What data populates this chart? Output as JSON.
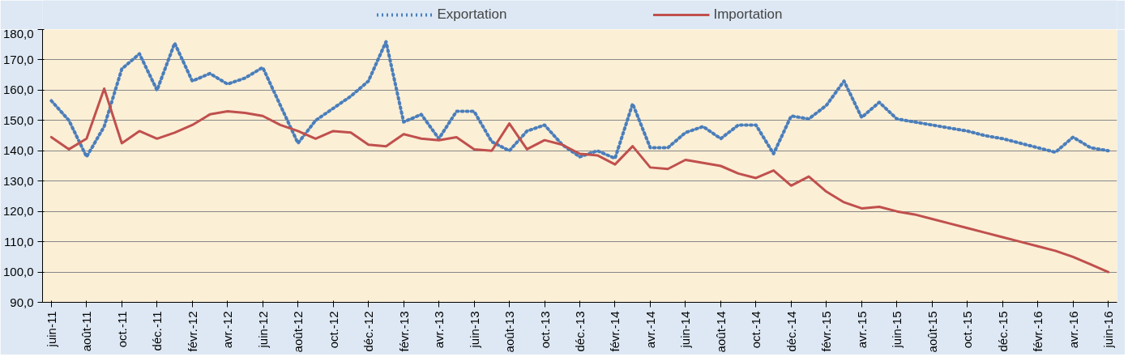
{
  "chart_data": {
    "type": "line",
    "categories": [
      "juin-11",
      null,
      "août-11",
      null,
      "oct.-11",
      null,
      "déc.-11",
      null,
      "févr.-12",
      null,
      "avr.-12",
      null,
      "juin-12",
      null,
      "août-12",
      null,
      "oct.-12",
      null,
      "déc.-12",
      null,
      "févr.-13",
      null,
      "avr.-13",
      null,
      "juin-13",
      null,
      "août-13",
      null,
      "oct.-13",
      null,
      "déc.-13",
      null,
      "févr.-14",
      null,
      "avr.-14",
      null,
      "juin-14",
      null,
      "août-14",
      null,
      "oct.-14",
      null,
      "déc.-14",
      null,
      "févr.-15",
      null,
      "avr.-15",
      null,
      "juin-15",
      null,
      "août-15",
      null,
      "oct.-15",
      null,
      "déc.-15",
      null,
      "févr.-16",
      null,
      "avr.-16",
      null,
      "juin-16"
    ],
    "series": [
      {
        "name": "Exportation",
        "color": "#4a7ebb",
        "line_style": "dotted",
        "values": [
          156.5,
          150,
          138,
          148,
          167,
          172,
          160,
          175.5,
          163,
          165.5,
          162,
          164,
          167.5,
          155,
          142.5,
          150,
          154,
          158,
          163,
          176,
          149.5,
          152,
          144,
          153,
          153,
          143,
          140,
          146.5,
          148.5,
          142,
          138,
          140,
          137.5,
          155.5,
          141,
          141,
          146,
          148,
          144,
          148.5,
          148.5,
          139,
          151.5,
          150.5,
          155,
          163,
          151,
          156,
          150.5,
          149.5,
          148.5,
          147.5,
          146.5,
          145,
          144,
          142.5,
          141,
          139.5,
          144.5,
          141,
          140
        ]
      },
      {
        "name": "Importation",
        "color": "#c0504d",
        "line_style": "solid",
        "values": [
          144.5,
          140.5,
          144,
          160.5,
          142.5,
          146.5,
          144,
          146,
          148.5,
          152,
          153,
          152.5,
          151.5,
          148.5,
          146.5,
          144,
          146.5,
          146,
          142,
          141.5,
          145.5,
          144,
          143.5,
          144.5,
          140.5,
          140,
          149,
          140.5,
          143.5,
          142,
          139,
          138.5,
          135.5,
          141.5,
          134.5,
          134,
          137,
          136,
          135,
          132.5,
          131,
          133.5,
          128.5,
          131.5,
          126.5,
          123,
          121,
          121.5,
          120,
          119,
          117.5,
          116,
          114.5,
          113,
          111.5,
          110,
          108.5,
          107,
          105,
          102.5,
          100
        ]
      }
    ],
    "ylim": [
      90,
      180
    ],
    "yticks": [
      {
        "value": 90,
        "label": "90,0"
      },
      {
        "value": 100,
        "label": "100,0"
      },
      {
        "value": 110,
        "label": "110,0"
      },
      {
        "value": 120,
        "label": "120,0"
      },
      {
        "value": 130,
        "label": "130,0"
      },
      {
        "value": 140,
        "label": "140,0"
      },
      {
        "value": 150,
        "label": "150,0"
      },
      {
        "value": 160,
        "label": "160,0"
      },
      {
        "value": 170,
        "label": "170,0"
      },
      {
        "value": 180,
        "label": "180,0"
      }
    ],
    "grid": "y",
    "legend": "top",
    "marker": "none"
  }
}
